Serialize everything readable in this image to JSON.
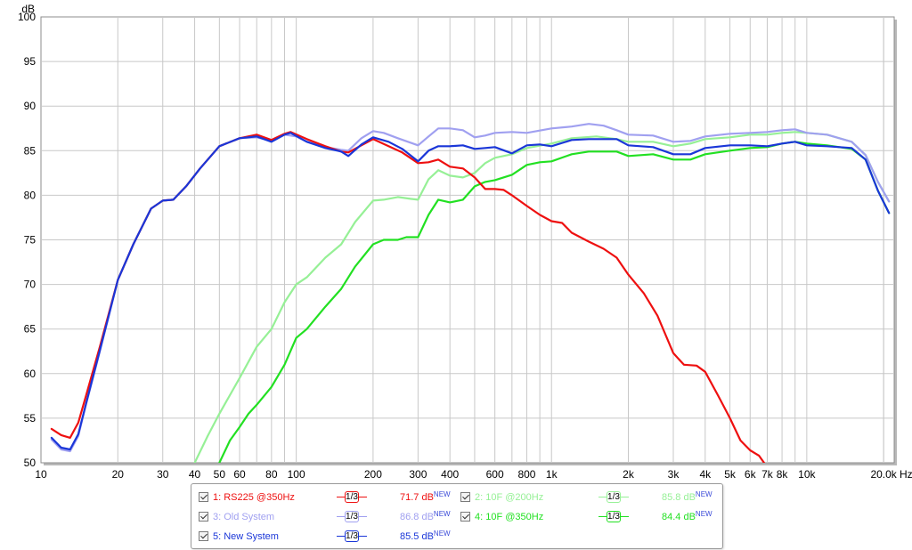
{
  "chart_data": {
    "type": "line",
    "ylabel": "dB",
    "xunit": "Hz",
    "xscale": "log",
    "xlim": [
      10,
      22000
    ],
    "ylim": [
      50,
      100
    ],
    "y_ticks": [
      50,
      55,
      60,
      65,
      70,
      75,
      80,
      85,
      90,
      95,
      100
    ],
    "x_tick_labels": [
      {
        "v": 10,
        "t": "10"
      },
      {
        "v": 20,
        "t": "20"
      },
      {
        "v": 30,
        "t": "30"
      },
      {
        "v": 40,
        "t": "40"
      },
      {
        "v": 50,
        "t": "50"
      },
      {
        "v": 60,
        "t": "60"
      },
      {
        "v": 80,
        "t": "80"
      },
      {
        "v": 100,
        "t": "100"
      },
      {
        "v": 200,
        "t": "200"
      },
      {
        "v": 300,
        "t": "300"
      },
      {
        "v": 400,
        "t": "400"
      },
      {
        "v": 600,
        "t": "600"
      },
      {
        "v": 800,
        "t": "800"
      },
      {
        "v": 1000,
        "t": "1k"
      },
      {
        "v": 2000,
        "t": "2k"
      },
      {
        "v": 3000,
        "t": "3k"
      },
      {
        "v": 4000,
        "t": "4k"
      },
      {
        "v": 5000,
        "t": "5k"
      },
      {
        "v": 6000,
        "t": "6k"
      },
      {
        "v": 7000,
        "t": "7k"
      },
      {
        "v": 8000,
        "t": "8k"
      },
      {
        "v": 10000,
        "t": "10k"
      },
      {
        "v": 20000,
        "t": "20.0k"
      }
    ],
    "grid": true,
    "series": [
      {
        "name": "1: RS225 @350Hz",
        "color": "#ee1010",
        "value_label": "71.7 dB",
        "enabled": true,
        "points": [
          [
            11,
            53.8
          ],
          [
            12,
            53.1
          ],
          [
            13,
            52.8
          ],
          [
            14,
            54.5
          ],
          [
            15,
            57.5
          ],
          [
            17,
            63
          ],
          [
            20,
            70.5
          ],
          [
            23,
            74.5
          ],
          [
            27,
            78.5
          ],
          [
            30,
            79.4
          ],
          [
            33,
            79.5
          ],
          [
            37,
            81
          ],
          [
            42,
            83
          ],
          [
            50,
            85.5
          ],
          [
            60,
            86.4
          ],
          [
            70,
            86.8
          ],
          [
            80,
            86.2
          ],
          [
            90,
            86.9
          ],
          [
            95,
            87.1
          ],
          [
            110,
            86.3
          ],
          [
            130,
            85.5
          ],
          [
            150,
            84.9
          ],
          [
            160,
            84.8
          ],
          [
            180,
            85.6
          ],
          [
            200,
            86.3
          ],
          [
            230,
            85.5
          ],
          [
            260,
            84.8
          ],
          [
            300,
            83.6
          ],
          [
            330,
            83.7
          ],
          [
            360,
            84
          ],
          [
            400,
            83.2
          ],
          [
            450,
            83
          ],
          [
            500,
            82
          ],
          [
            550,
            80.7
          ],
          [
            600,
            80.7
          ],
          [
            650,
            80.6
          ],
          [
            700,
            80
          ],
          [
            800,
            78.8
          ],
          [
            900,
            77.8
          ],
          [
            1000,
            77.1
          ],
          [
            1100,
            76.9
          ],
          [
            1200,
            75.8
          ],
          [
            1400,
            74.8
          ],
          [
            1600,
            74
          ],
          [
            1800,
            73
          ],
          [
            2000,
            71.1
          ],
          [
            2300,
            69
          ],
          [
            2600,
            66.5
          ],
          [
            3000,
            62.3
          ],
          [
            3300,
            61
          ],
          [
            3700,
            60.9
          ],
          [
            4000,
            60.2
          ],
          [
            4500,
            57.5
          ],
          [
            5000,
            55
          ],
          [
            5500,
            52.5
          ],
          [
            6000,
            51.4
          ],
          [
            6500,
            50.8
          ],
          [
            7000,
            49.5
          ]
        ]
      },
      {
        "name": "2: 10F @200Hz",
        "color": "#96f096",
        "value_label": "85.8 dB",
        "enabled": false,
        "points": [
          [
            40,
            50
          ],
          [
            45,
            53
          ],
          [
            50,
            55.5
          ],
          [
            60,
            59.5
          ],
          [
            70,
            63
          ],
          [
            80,
            65
          ],
          [
            90,
            68
          ],
          [
            100,
            70
          ],
          [
            110,
            70.8
          ],
          [
            130,
            73
          ],
          [
            150,
            74.5
          ],
          [
            170,
            77
          ],
          [
            200,
            79.4
          ],
          [
            220,
            79.5
          ],
          [
            250,
            79.8
          ],
          [
            280,
            79.6
          ],
          [
            300,
            79.5
          ],
          [
            330,
            81.8
          ],
          [
            360,
            82.8
          ],
          [
            400,
            82.2
          ],
          [
            450,
            82
          ],
          [
            500,
            82.5
          ],
          [
            550,
            83.6
          ],
          [
            600,
            84.2
          ],
          [
            700,
            84.6
          ],
          [
            800,
            85.3
          ],
          [
            1000,
            85.8
          ],
          [
            1200,
            86.4
          ],
          [
            1500,
            86.6
          ],
          [
            1800,
            86.3
          ],
          [
            2000,
            86
          ],
          [
            2500,
            86
          ],
          [
            3000,
            85.5
          ],
          [
            3500,
            85.8
          ],
          [
            4000,
            86.3
          ],
          [
            5000,
            86.5
          ],
          [
            6000,
            86.8
          ],
          [
            7000,
            86.8
          ],
          [
            8000,
            87
          ],
          [
            9000,
            87.1
          ],
          [
            10000,
            87
          ],
          [
            12000,
            86.8
          ],
          [
            15000,
            86
          ],
          [
            17000,
            84.5
          ],
          [
            19000,
            81.5
          ],
          [
            21000,
            79.3
          ]
        ]
      },
      {
        "name": "3: Old System",
        "color": "#a0a0f0",
        "value_label": "86.8 dB",
        "enabled": false,
        "points": [
          [
            11,
            52.6
          ],
          [
            12,
            51.5
          ],
          [
            13,
            51.3
          ],
          [
            14,
            53
          ],
          [
            15,
            56.5
          ],
          [
            17,
            62.5
          ],
          [
            20,
            70.5
          ],
          [
            23,
            74.5
          ],
          [
            27,
            78.5
          ],
          [
            30,
            79.4
          ],
          [
            33,
            79.5
          ],
          [
            37,
            81
          ],
          [
            42,
            83
          ],
          [
            50,
            85.5
          ],
          [
            60,
            86.4
          ],
          [
            70,
            86.5
          ],
          [
            80,
            86.1
          ],
          [
            90,
            86.8
          ],
          [
            100,
            86.6
          ],
          [
            110,
            86
          ],
          [
            130,
            85.4
          ],
          [
            150,
            85.1
          ],
          [
            160,
            85
          ],
          [
            180,
            86.4
          ],
          [
            200,
            87.2
          ],
          [
            220,
            87
          ],
          [
            250,
            86.4
          ],
          [
            300,
            85.6
          ],
          [
            330,
            86.6
          ],
          [
            360,
            87.5
          ],
          [
            400,
            87.5
          ],
          [
            450,
            87.3
          ],
          [
            500,
            86.5
          ],
          [
            550,
            86.7
          ],
          [
            600,
            87
          ],
          [
            700,
            87.1
          ],
          [
            800,
            87
          ],
          [
            1000,
            87.5
          ],
          [
            1200,
            87.7
          ],
          [
            1400,
            88
          ],
          [
            1600,
            87.8
          ],
          [
            1800,
            87.3
          ],
          [
            2000,
            86.8
          ],
          [
            2500,
            86.7
          ],
          [
            3000,
            86
          ],
          [
            3500,
            86.1
          ],
          [
            4000,
            86.6
          ],
          [
            5000,
            86.9
          ],
          [
            6000,
            87
          ],
          [
            7000,
            87.1
          ],
          [
            8000,
            87.3
          ],
          [
            9000,
            87.4
          ],
          [
            10000,
            87
          ],
          [
            12000,
            86.8
          ],
          [
            15000,
            86
          ],
          [
            17000,
            84.5
          ],
          [
            19000,
            81.5
          ],
          [
            21000,
            79.3
          ]
        ]
      },
      {
        "name": "4: 10F @350Hz",
        "color": "#22e022",
        "value_label": "84.4 dB",
        "enabled": true,
        "points": [
          [
            50,
            50
          ],
          [
            55,
            52.5
          ],
          [
            60,
            54
          ],
          [
            65,
            55.5
          ],
          [
            70,
            56.5
          ],
          [
            80,
            58.5
          ],
          [
            90,
            61
          ],
          [
            100,
            64
          ],
          [
            110,
            65
          ],
          [
            130,
            67.5
          ],
          [
            150,
            69.5
          ],
          [
            170,
            72
          ],
          [
            200,
            74.5
          ],
          [
            220,
            75
          ],
          [
            250,
            75
          ],
          [
            270,
            75.3
          ],
          [
            300,
            75.3
          ],
          [
            330,
            77.8
          ],
          [
            360,
            79.5
          ],
          [
            400,
            79.2
          ],
          [
            450,
            79.5
          ],
          [
            500,
            81
          ],
          [
            550,
            81.5
          ],
          [
            600,
            81.7
          ],
          [
            700,
            82.3
          ],
          [
            800,
            83.4
          ],
          [
            900,
            83.7
          ],
          [
            1000,
            83.8
          ],
          [
            1200,
            84.6
          ],
          [
            1400,
            84.9
          ],
          [
            1800,
            84.9
          ],
          [
            2000,
            84.4
          ],
          [
            2500,
            84.6
          ],
          [
            3000,
            84
          ],
          [
            3500,
            84
          ],
          [
            4000,
            84.6
          ],
          [
            5000,
            85
          ],
          [
            6000,
            85.3
          ],
          [
            7000,
            85.4
          ],
          [
            8000,
            85.8
          ],
          [
            9000,
            86
          ],
          [
            10000,
            85.8
          ],
          [
            12000,
            85.6
          ],
          [
            15000,
            85.2
          ],
          [
            17000,
            84
          ],
          [
            19000,
            80.5
          ],
          [
            21000,
            78
          ]
        ]
      },
      {
        "name": "5: New System",
        "color": "#1a36d8",
        "value_label": "85.5 dB",
        "enabled": true,
        "points": [
          [
            11,
            52.8
          ],
          [
            12,
            51.7
          ],
          [
            13,
            51.5
          ],
          [
            14,
            53.2
          ],
          [
            15,
            56.6
          ],
          [
            17,
            62.6
          ],
          [
            20,
            70.5
          ],
          [
            23,
            74.5
          ],
          [
            27,
            78.5
          ],
          [
            30,
            79.4
          ],
          [
            33,
            79.5
          ],
          [
            37,
            81
          ],
          [
            42,
            83
          ],
          [
            50,
            85.5
          ],
          [
            60,
            86.4
          ],
          [
            70,
            86.6
          ],
          [
            80,
            86
          ],
          [
            90,
            86.8
          ],
          [
            95,
            87
          ],
          [
            110,
            86
          ],
          [
            130,
            85.3
          ],
          [
            150,
            84.9
          ],
          [
            160,
            84.4
          ],
          [
            180,
            85.7
          ],
          [
            200,
            86.5
          ],
          [
            230,
            86
          ],
          [
            260,
            85.2
          ],
          [
            300,
            83.8
          ],
          [
            330,
            85
          ],
          [
            360,
            85.5
          ],
          [
            400,
            85.5
          ],
          [
            450,
            85.6
          ],
          [
            500,
            85.2
          ],
          [
            550,
            85.3
          ],
          [
            600,
            85.4
          ],
          [
            700,
            84.7
          ],
          [
            800,
            85.6
          ],
          [
            900,
            85.7
          ],
          [
            1000,
            85.5
          ],
          [
            1200,
            86.2
          ],
          [
            1400,
            86.3
          ],
          [
            1800,
            86.3
          ],
          [
            2000,
            85.6
          ],
          [
            2500,
            85.4
          ],
          [
            3000,
            84.6
          ],
          [
            3500,
            84.6
          ],
          [
            4000,
            85.3
          ],
          [
            5000,
            85.6
          ],
          [
            6000,
            85.6
          ],
          [
            7000,
            85.5
          ],
          [
            8000,
            85.8
          ],
          [
            9000,
            86
          ],
          [
            10000,
            85.6
          ],
          [
            12000,
            85.5
          ],
          [
            15000,
            85.3
          ],
          [
            17000,
            84
          ],
          [
            19000,
            80.5
          ],
          [
            21000,
            78
          ]
        ]
      }
    ]
  },
  "legend": {
    "smoothing_label": "1/3",
    "new_tag": "NEW",
    "items": [
      {
        "label": "1: RS225 @350Hz",
        "value": "71.7 dB"
      },
      {
        "label": "2: 10F @200Hz",
        "value": "85.8 dB"
      },
      {
        "label": "3: Old System",
        "value": "86.8 dB"
      },
      {
        "label": "4: 10F @350Hz",
        "value": "84.4 dB"
      },
      {
        "label": "5: New System",
        "value": "85.5 dB"
      }
    ]
  }
}
